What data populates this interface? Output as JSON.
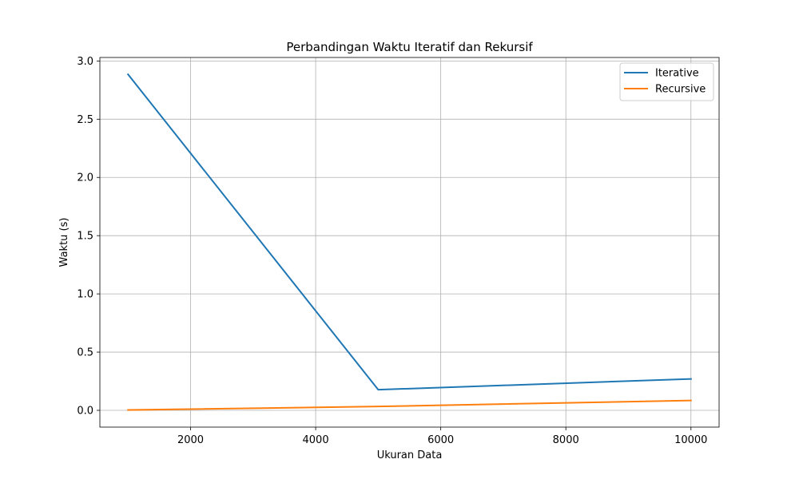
{
  "chart_data": {
    "type": "line",
    "title": "Perbandingan Waktu Iteratif dan Rekursif",
    "xlabel": "Ukuran Data",
    "ylabel": "Waktu (s)",
    "x": [
      1000,
      5000,
      10000
    ],
    "xlim": [
      550,
      10450
    ],
    "ylim": [
      -0.144,
      3.03
    ],
    "xticks": [
      2000,
      4000,
      6000,
      8000,
      10000
    ],
    "xtick_labels": [
      "2000",
      "4000",
      "6000",
      "8000",
      "10000"
    ],
    "yticks": [
      0.0,
      0.5,
      1.0,
      1.5,
      2.0,
      2.5,
      3.0
    ],
    "ytick_labels": [
      "0.0",
      "0.5",
      "1.0",
      "1.5",
      "2.0",
      "2.5",
      "3.0"
    ],
    "grid": true,
    "legend_position": "top-right",
    "series": [
      {
        "name": "Iterative",
        "color": "#1f77b4",
        "values": [
          2.885,
          0.177,
          0.27
        ]
      },
      {
        "name": "Recursive",
        "color": "#ff7f0e",
        "values": [
          0.003,
          0.033,
          0.085
        ]
      }
    ]
  }
}
